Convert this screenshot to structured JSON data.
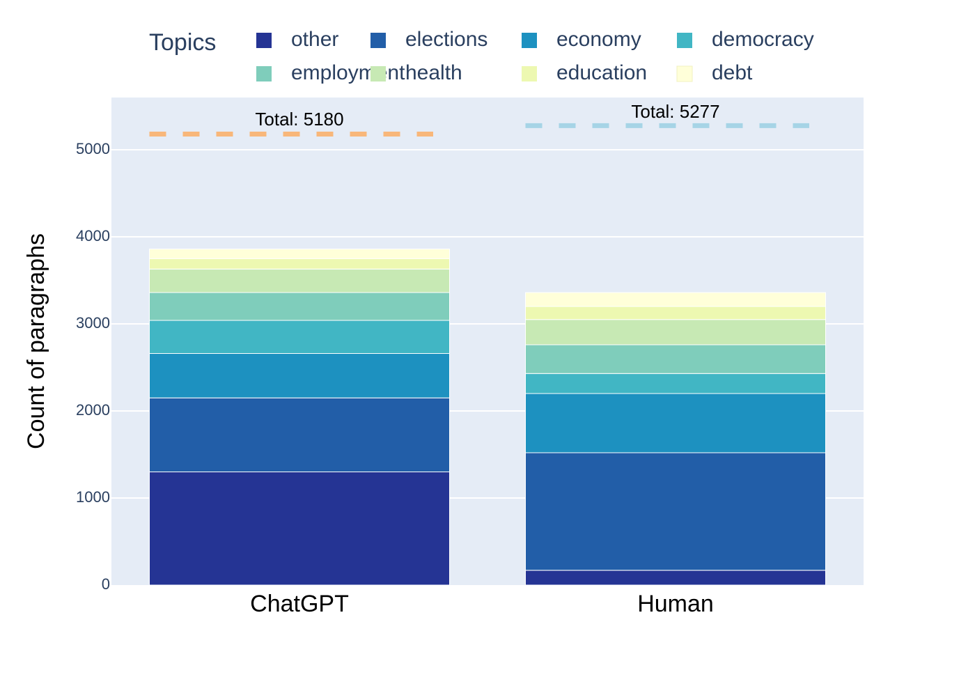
{
  "legend": {
    "title": "Topics",
    "items": [
      {
        "label": "other",
        "color": "#253494"
      },
      {
        "label": "elections",
        "color": "#225ea8"
      },
      {
        "label": "economy",
        "color": "#1d91c0"
      },
      {
        "label": "democracy",
        "color": "#41b6c4"
      },
      {
        "label": "employment",
        "color": "#7fcdbb"
      },
      {
        "label": "health",
        "color": "#c7e9b4"
      },
      {
        "label": "education",
        "color": "#edf8b1"
      },
      {
        "label": "debt",
        "color": "#ffffd9"
      }
    ]
  },
  "annotations": {
    "chatgpt_total": "Total: 5180",
    "human_total": "Total: 5277"
  },
  "chart_data": {
    "type": "bar",
    "barmode": "stack",
    "categories": [
      "ChatGPT",
      "Human"
    ],
    "ylabel": "Count of paragraphs",
    "xlabel": "",
    "ylim": [
      0,
      5600
    ],
    "yticks": [
      0,
      1000,
      2000,
      3000,
      4000,
      5000
    ],
    "grid": true,
    "legend_position": "top",
    "series": [
      {
        "name": "other",
        "values": [
          1300,
          170
        ]
      },
      {
        "name": "elections",
        "values": [
          850,
          1350
        ]
      },
      {
        "name": "economy",
        "values": [
          510,
          680
        ]
      },
      {
        "name": "democracy",
        "values": [
          380,
          230
        ]
      },
      {
        "name": "employment",
        "values": [
          320,
          330
        ]
      },
      {
        "name": "health",
        "values": [
          270,
          290
        ]
      },
      {
        "name": "education",
        "values": [
          120,
          150
        ]
      },
      {
        "name": "debt",
        "values": [
          110,
          160
        ]
      }
    ],
    "total_lines": [
      {
        "category": "ChatGPT",
        "value": 5180,
        "color": "#f8b77a"
      },
      {
        "category": "Human",
        "value": 5277,
        "color": "#a6d4e6"
      }
    ]
  }
}
